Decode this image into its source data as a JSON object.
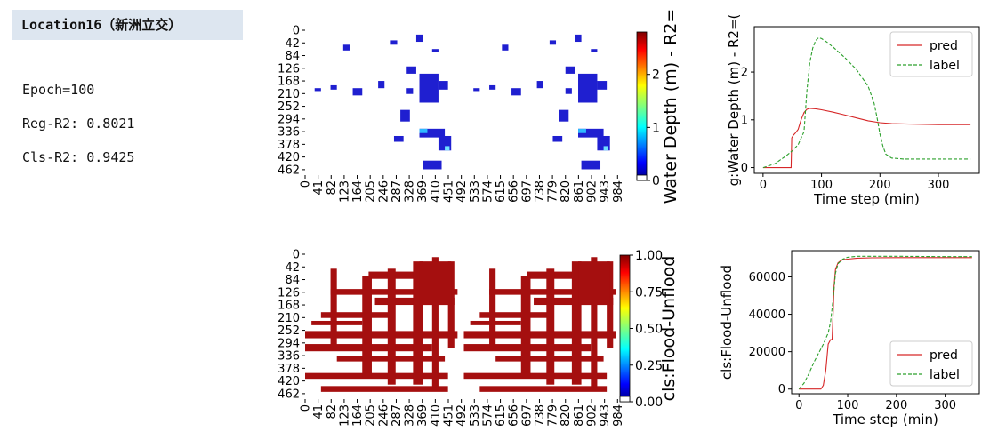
{
  "header": {
    "location_label": "Location16（新洲立交）",
    "epoch": "Epoch=100",
    "reg_r2": "Reg-R2: 0.8021",
    "cls_r2": "Cls-R2: 0.9425"
  },
  "colors": {
    "pred": "#d62728",
    "label": "#2ca02c",
    "flood": "#a50f0f",
    "water_deep": "#1f1fd0"
  },
  "chart_data": [
    {
      "type": "heatmap",
      "panel": "depth-maps",
      "y_ticks": [
        "0",
        "42",
        "84",
        "126",
        "168",
        "210",
        "252",
        "294",
        "336",
        "378",
        "420",
        "462"
      ],
      "x_ticks": [
        "0",
        "41",
        "82",
        "123",
        "164",
        "205",
        "246",
        "287",
        "328",
        "369",
        "410",
        "451",
        "492",
        "533",
        "574",
        "615",
        "656",
        "697",
        "738",
        "779",
        "820",
        "861",
        "902",
        "943",
        "984"
      ],
      "colorbar_label": "Water Depth (m) - R2=",
      "colorbar_ticks": [
        "0",
        "1",
        "2"
      ],
      "colorbar_range": [
        0,
        2.8
      ],
      "colormap": "jet"
    },
    {
      "type": "heatmap",
      "panel": "flood-maps",
      "y_ticks": [
        "0",
        "42",
        "84",
        "126",
        "168",
        "210",
        "252",
        "294",
        "336",
        "378",
        "420",
        "462"
      ],
      "x_ticks": [
        "0",
        "41",
        "82",
        "123",
        "164",
        "205",
        "246",
        "287",
        "328",
        "369",
        "410",
        "451",
        "492",
        "533",
        "574",
        "615",
        "656",
        "697",
        "738",
        "779",
        "820",
        "861",
        "902",
        "943",
        "984"
      ],
      "colorbar_label": "cls:Flood-Unflood",
      "colorbar_ticks": [
        "0.00",
        "0.25",
        "0.50",
        "0.75",
        "1.00"
      ],
      "colorbar_range": [
        0,
        1
      ],
      "colormap": "jet"
    },
    {
      "type": "line",
      "panel": "depth-series",
      "xlabel": "Time step (min)",
      "ylabel": "g:Water Depth (m) - R2=(",
      "xlim": [
        -15,
        370
      ],
      "ylim": [
        -0.12,
        2.95
      ],
      "x_ticks": [
        0,
        100,
        200,
        300
      ],
      "y_ticks": [
        0,
        1,
        2
      ],
      "legend": "top-right",
      "series": [
        {
          "name": "pred",
          "x": [
            0,
            48,
            49,
            52,
            55,
            60,
            65,
            70,
            75,
            80,
            90,
            100,
            120,
            140,
            160,
            180,
            200,
            220,
            250,
            300,
            355
          ],
          "y": [
            0,
            0,
            0.62,
            0.68,
            0.72,
            0.8,
            1.0,
            1.15,
            1.22,
            1.24,
            1.23,
            1.21,
            1.16,
            1.1,
            1.04,
            0.98,
            0.94,
            0.92,
            0.91,
            0.9,
            0.9
          ]
        },
        {
          "name": "label",
          "x": [
            0,
            20,
            40,
            50,
            60,
            70,
            75,
            80,
            85,
            90,
            95,
            100,
            110,
            120,
            140,
            160,
            180,
            190,
            195,
            200,
            205,
            210,
            220,
            240,
            260,
            300,
            355
          ],
          "y": [
            0,
            0.08,
            0.25,
            0.35,
            0.48,
            0.75,
            1.6,
            2.2,
            2.5,
            2.66,
            2.72,
            2.7,
            2.62,
            2.52,
            2.3,
            2.05,
            1.7,
            1.35,
            1.05,
            0.7,
            0.45,
            0.28,
            0.2,
            0.18,
            0.18,
            0.18,
            0.18
          ]
        }
      ]
    },
    {
      "type": "line",
      "panel": "flood-series",
      "xlabel": "Time step (min)",
      "ylabel": "cls:Flood-Unflood",
      "xlim": [
        -15,
        370
      ],
      "ylim": [
        -2500,
        74000
      ],
      "x_ticks": [
        0,
        100,
        200,
        300
      ],
      "y_ticks": [
        0,
        20000,
        40000,
        60000
      ],
      "legend": "bottom-right",
      "series": [
        {
          "name": "pred",
          "x": [
            0,
            40,
            45,
            50,
            55,
            60,
            65,
            68,
            70,
            72,
            75,
            80,
            85,
            90,
            100,
            120,
            150,
            200,
            300,
            355
          ],
          "y": [
            0,
            0,
            0,
            2000,
            10000,
            24000,
            26500,
            26500,
            40000,
            55000,
            64000,
            67500,
            68500,
            69200,
            69500,
            70000,
            70200,
            70300,
            70300,
            70300
          ]
        },
        {
          "name": "label",
          "x": [
            0,
            10,
            20,
            30,
            40,
            50,
            55,
            60,
            65,
            70,
            75,
            80,
            90,
            100,
            120,
            150,
            200,
            300,
            355
          ],
          "y": [
            0,
            3000,
            8000,
            14000,
            19000,
            24000,
            27000,
            30000,
            36000,
            48000,
            62000,
            67000,
            69500,
            70500,
            71000,
            71000,
            71000,
            70800,
            70800
          ]
        }
      ]
    }
  ]
}
